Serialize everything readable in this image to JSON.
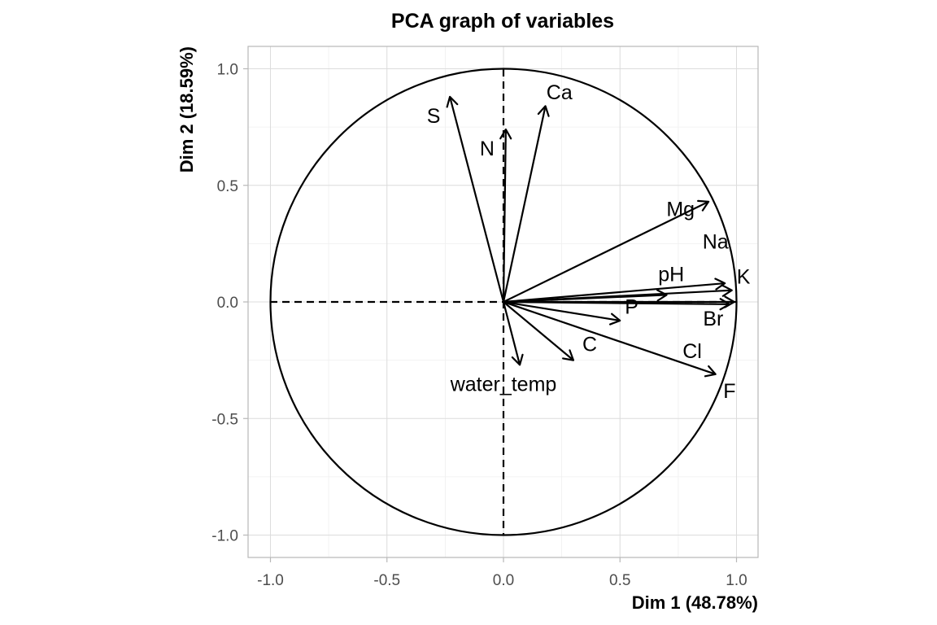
{
  "chart_data": {
    "type": "scatter",
    "subtype": "pca-correlation-circle",
    "title": "PCA graph of variables",
    "xlabel": "Dim 1 (48.78%)",
    "ylabel": "Dim 2 (18.59%)",
    "xlim": [
      -1.1,
      1.1
    ],
    "ylim": [
      -1.1,
      1.1
    ],
    "xticks": [
      -1.0,
      -0.5,
      0.0,
      0.5,
      1.0
    ],
    "yticks": [
      -1.0,
      -0.5,
      0.0,
      0.5,
      1.0
    ],
    "xtick_labels": [
      "-1.0",
      "-0.5",
      "0.0",
      "0.5",
      "1.0"
    ],
    "ytick_labels": [
      "-1.0",
      "-0.5",
      "0.0",
      "0.5",
      "1.0"
    ],
    "grid": true,
    "unit_circle": true,
    "variables": [
      {
        "name": "S",
        "x": -0.23,
        "y": 0.88,
        "lx": -0.3,
        "ly": 0.8
      },
      {
        "name": "N",
        "x": 0.01,
        "y": 0.74,
        "lx": -0.07,
        "ly": 0.66
      },
      {
        "name": "Ca",
        "x": 0.18,
        "y": 0.84,
        "lx": 0.24,
        "ly": 0.9
      },
      {
        "name": "Mg",
        "x": 0.88,
        "y": 0.43,
        "lx": 0.76,
        "ly": 0.4
      },
      {
        "name": "Na",
        "x": 0.95,
        "y": 0.08,
        "lx": 0.91,
        "ly": 0.26
      },
      {
        "name": "K",
        "x": 0.98,
        "y": 0.05,
        "lx": 1.03,
        "ly": 0.11
      },
      {
        "name": "pH",
        "x": 0.7,
        "y": 0.03,
        "lx": 0.72,
        "ly": 0.12
      },
      {
        "name": "Br",
        "x": 0.99,
        "y": -0.0,
        "lx": 0.9,
        "ly": -0.07
      },
      {
        "name": "P",
        "x": 0.5,
        "y": -0.08,
        "lx": 0.55,
        "ly": -0.02
      },
      {
        "name": "Cl",
        "x": 0.97,
        "y": -0.01,
        "lx": 0.81,
        "ly": -0.21
      },
      {
        "name": "C",
        "x": 0.3,
        "y": -0.25,
        "lx": 0.37,
        "ly": -0.18
      },
      {
        "name": "F",
        "x": 0.91,
        "y": -0.31,
        "lx": 0.97,
        "ly": -0.38
      },
      {
        "name": "water_temp",
        "x": 0.07,
        "y": -0.27,
        "lx": 0.0,
        "ly": -0.35
      }
    ]
  }
}
